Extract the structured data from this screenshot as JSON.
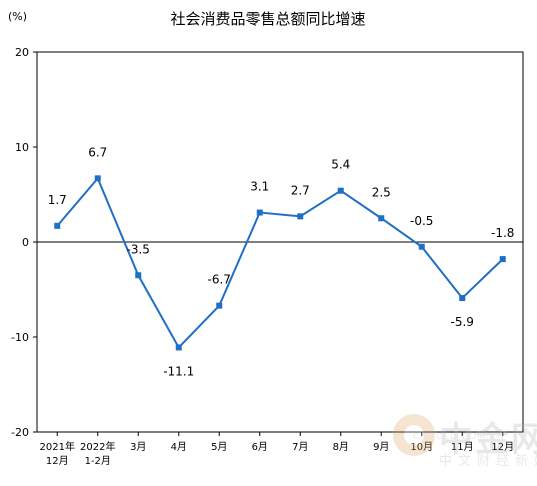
{
  "chart_data": {
    "type": "line",
    "title": "社会消费品零售总额同比增速",
    "unit_label": "(%)",
    "categories": [
      [
        "2021年",
        "12月"
      ],
      [
        "2022年",
        "1-2月"
      ],
      [
        "3月"
      ],
      [
        "4月"
      ],
      [
        "5月"
      ],
      [
        "6月"
      ],
      [
        "7月"
      ],
      [
        "8月"
      ],
      [
        "9月"
      ],
      [
        "10月"
      ],
      [
        "11月"
      ],
      [
        "12月"
      ]
    ],
    "series": [
      {
        "values": [
          1.7,
          6.7,
          -3.5,
          -11.1,
          -6.7,
          3.1,
          2.7,
          5.4,
          2.5,
          -0.5,
          -5.9,
          -1.8
        ],
        "labels": [
          "1.7",
          "6.7",
          "-3.5",
          "-11.1",
          "-6.7",
          "3.1",
          "2.7",
          "5.4",
          "2.5",
          "-0.5",
          "-5.9",
          "-1.8"
        ],
        "color": "#1f6fc5"
      }
    ],
    "yticks": [
      20,
      10,
      0,
      -10,
      -20
    ],
    "ylim": [
      -20,
      20
    ],
    "grid": false
  },
  "watermark": {
    "main": "中金网",
    "url": "CNGOLD.COM.CN",
    "sub": "中文财经新媒体"
  }
}
